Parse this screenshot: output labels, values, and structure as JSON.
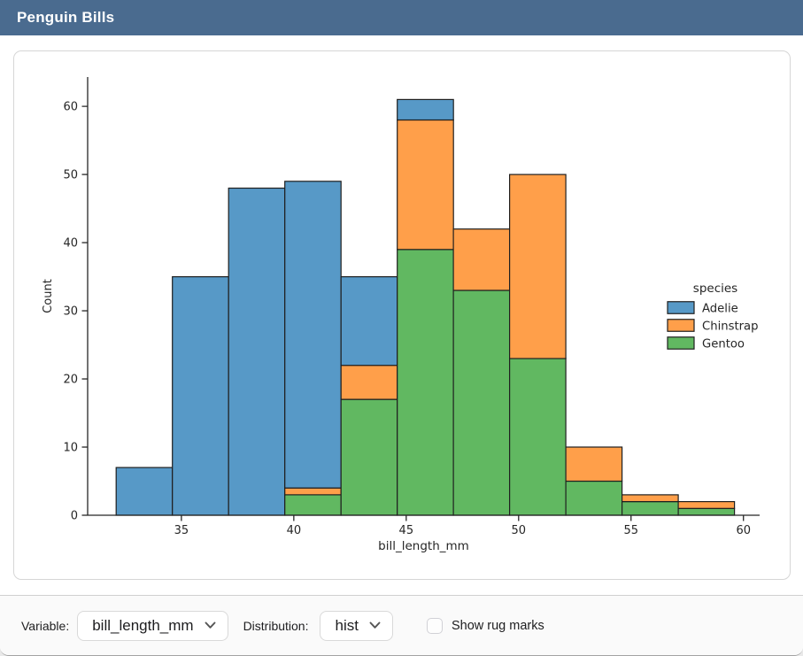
{
  "header": {
    "title": "Penguin Bills"
  },
  "controls": {
    "variable_label": "Variable:",
    "variable_value": "bill_length_mm",
    "distribution_label": "Distribution:",
    "distribution_value": "hist",
    "rug_label": "Show rug marks",
    "rug_checked": false
  },
  "icons": {
    "variable_chevron": "chevron-down-icon",
    "distribution_chevron": "chevron-down-icon"
  },
  "colors": {
    "header_bg": "#4A6B8F",
    "card_border": "#D6D6D6",
    "divider": "#CFCFCF",
    "control_border": "#D9D9D9",
    "axis": "#262626",
    "text": "#1D1D1F"
  },
  "chart_data": {
    "type": "bar",
    "subtype": "stacked-histogram",
    "title": "",
    "xlabel": "bill_length_mm",
    "ylabel": "Count",
    "legend": {
      "title": "species",
      "position": "right",
      "entries": [
        "Adelie",
        "Chinstrap",
        "Gentoo"
      ]
    },
    "bin_edges": [
      32.1,
      34.6,
      37.1,
      39.6,
      42.1,
      44.6,
      47.1,
      49.6,
      52.1,
      54.6,
      57.1,
      59.6
    ],
    "series": [
      {
        "name": "Adelie",
        "color": "#5799C7",
        "values": [
          7,
          35,
          48,
          45,
          13,
          3,
          0,
          0,
          0,
          0,
          0
        ]
      },
      {
        "name": "Chinstrap",
        "color": "#FF9F4A",
        "values": [
          0,
          0,
          0,
          1,
          5,
          19,
          9,
          27,
          5,
          1,
          1
        ]
      },
      {
        "name": "Gentoo",
        "color": "#61B861",
        "values": [
          0,
          0,
          0,
          3,
          17,
          39,
          33,
          23,
          5,
          2,
          1
        ]
      }
    ],
    "stack_order": [
      "Gentoo",
      "Chinstrap",
      "Adelie"
    ],
    "stacked_totals": [
      7,
      35,
      48,
      49,
      35,
      61,
      42,
      50,
      10,
      3,
      2
    ],
    "bar_edge_color": "#1F1F1F",
    "xticks": [
      35,
      40,
      45,
      50,
      55,
      60
    ],
    "yticks": [
      0,
      10,
      20,
      30,
      40,
      50,
      60
    ],
    "xlim": [
      30.83,
      60.72
    ],
    "ylim": [
      0,
      64.3
    ],
    "grid": false
  }
}
